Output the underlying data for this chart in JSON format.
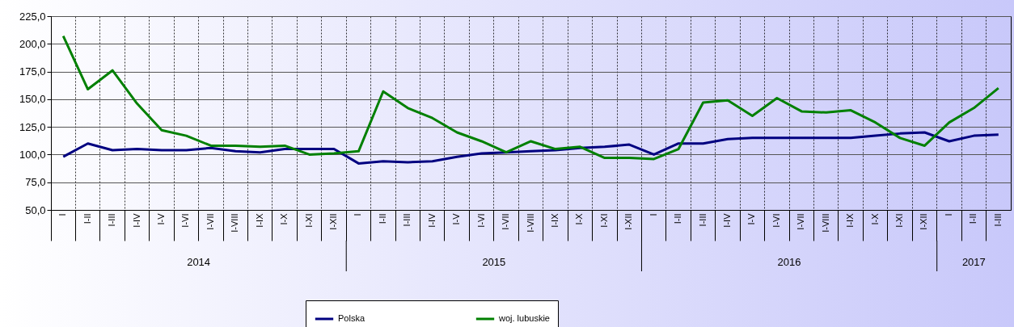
{
  "chart_data": {
    "type": "line",
    "categories": [
      "I",
      "I-II",
      "I-III",
      "I-IV",
      "I-V",
      "I-VI",
      "I-VII",
      "I-VIII",
      "I-IX",
      "I-X",
      "I-XI",
      "I-XII",
      "I",
      "I-II",
      "I-III",
      "I-IV",
      "I-V",
      "I-VI",
      "I-VII",
      "I-VIII",
      "I-IX",
      "I-X",
      "I-XI",
      "I-XII",
      "I",
      "I-II",
      "I-III",
      "I-IV",
      "I-V",
      "I-VI",
      "I-VII",
      "I-VIII",
      "I-IX",
      "I-X",
      "I-XI",
      "I-XII",
      "I",
      "I-II",
      "I-III"
    ],
    "series": [
      {
        "name": "Polska",
        "color": "#000080",
        "values": [
          98,
          110,
          104,
          105,
          104,
          104,
          106,
          103,
          102,
          105,
          105,
          105,
          92,
          94,
          93,
          94,
          98,
          101,
          102,
          103,
          104,
          106,
          107,
          109,
          100,
          110,
          110,
          114,
          115,
          115,
          115,
          115,
          115,
          117,
          119,
          120,
          112,
          117,
          118
        ]
      },
      {
        "name": "woj. lubuskie",
        "color": "#008000",
        "values": [
          207,
          159,
          176,
          146,
          122,
          117,
          108,
          108,
          107,
          108,
          100,
          101,
          103,
          157,
          142,
          133,
          120,
          112,
          102,
          112,
          105,
          107,
          97,
          97,
          96,
          105,
          147,
          149,
          135,
          151,
          139,
          138,
          140,
          129,
          115,
          108,
          129,
          142,
          160
        ]
      }
    ],
    "ylim": [
      50,
      225
    ],
    "yticks": [
      {
        "value": 50,
        "label": "50,0"
      },
      {
        "value": 75,
        "label": "75,0"
      },
      {
        "value": 100,
        "label": "100,0"
      },
      {
        "value": 125,
        "label": "125,0"
      },
      {
        "value": 150,
        "label": "150,0"
      },
      {
        "value": 175,
        "label": "175,0"
      },
      {
        "value": 200,
        "label": "200,0"
      },
      {
        "value": 225,
        "label": "225,0"
      }
    ],
    "annotations": [
      "2014",
      "2015",
      "2016",
      "2017"
    ],
    "grid": true,
    "legend": "bottom"
  }
}
